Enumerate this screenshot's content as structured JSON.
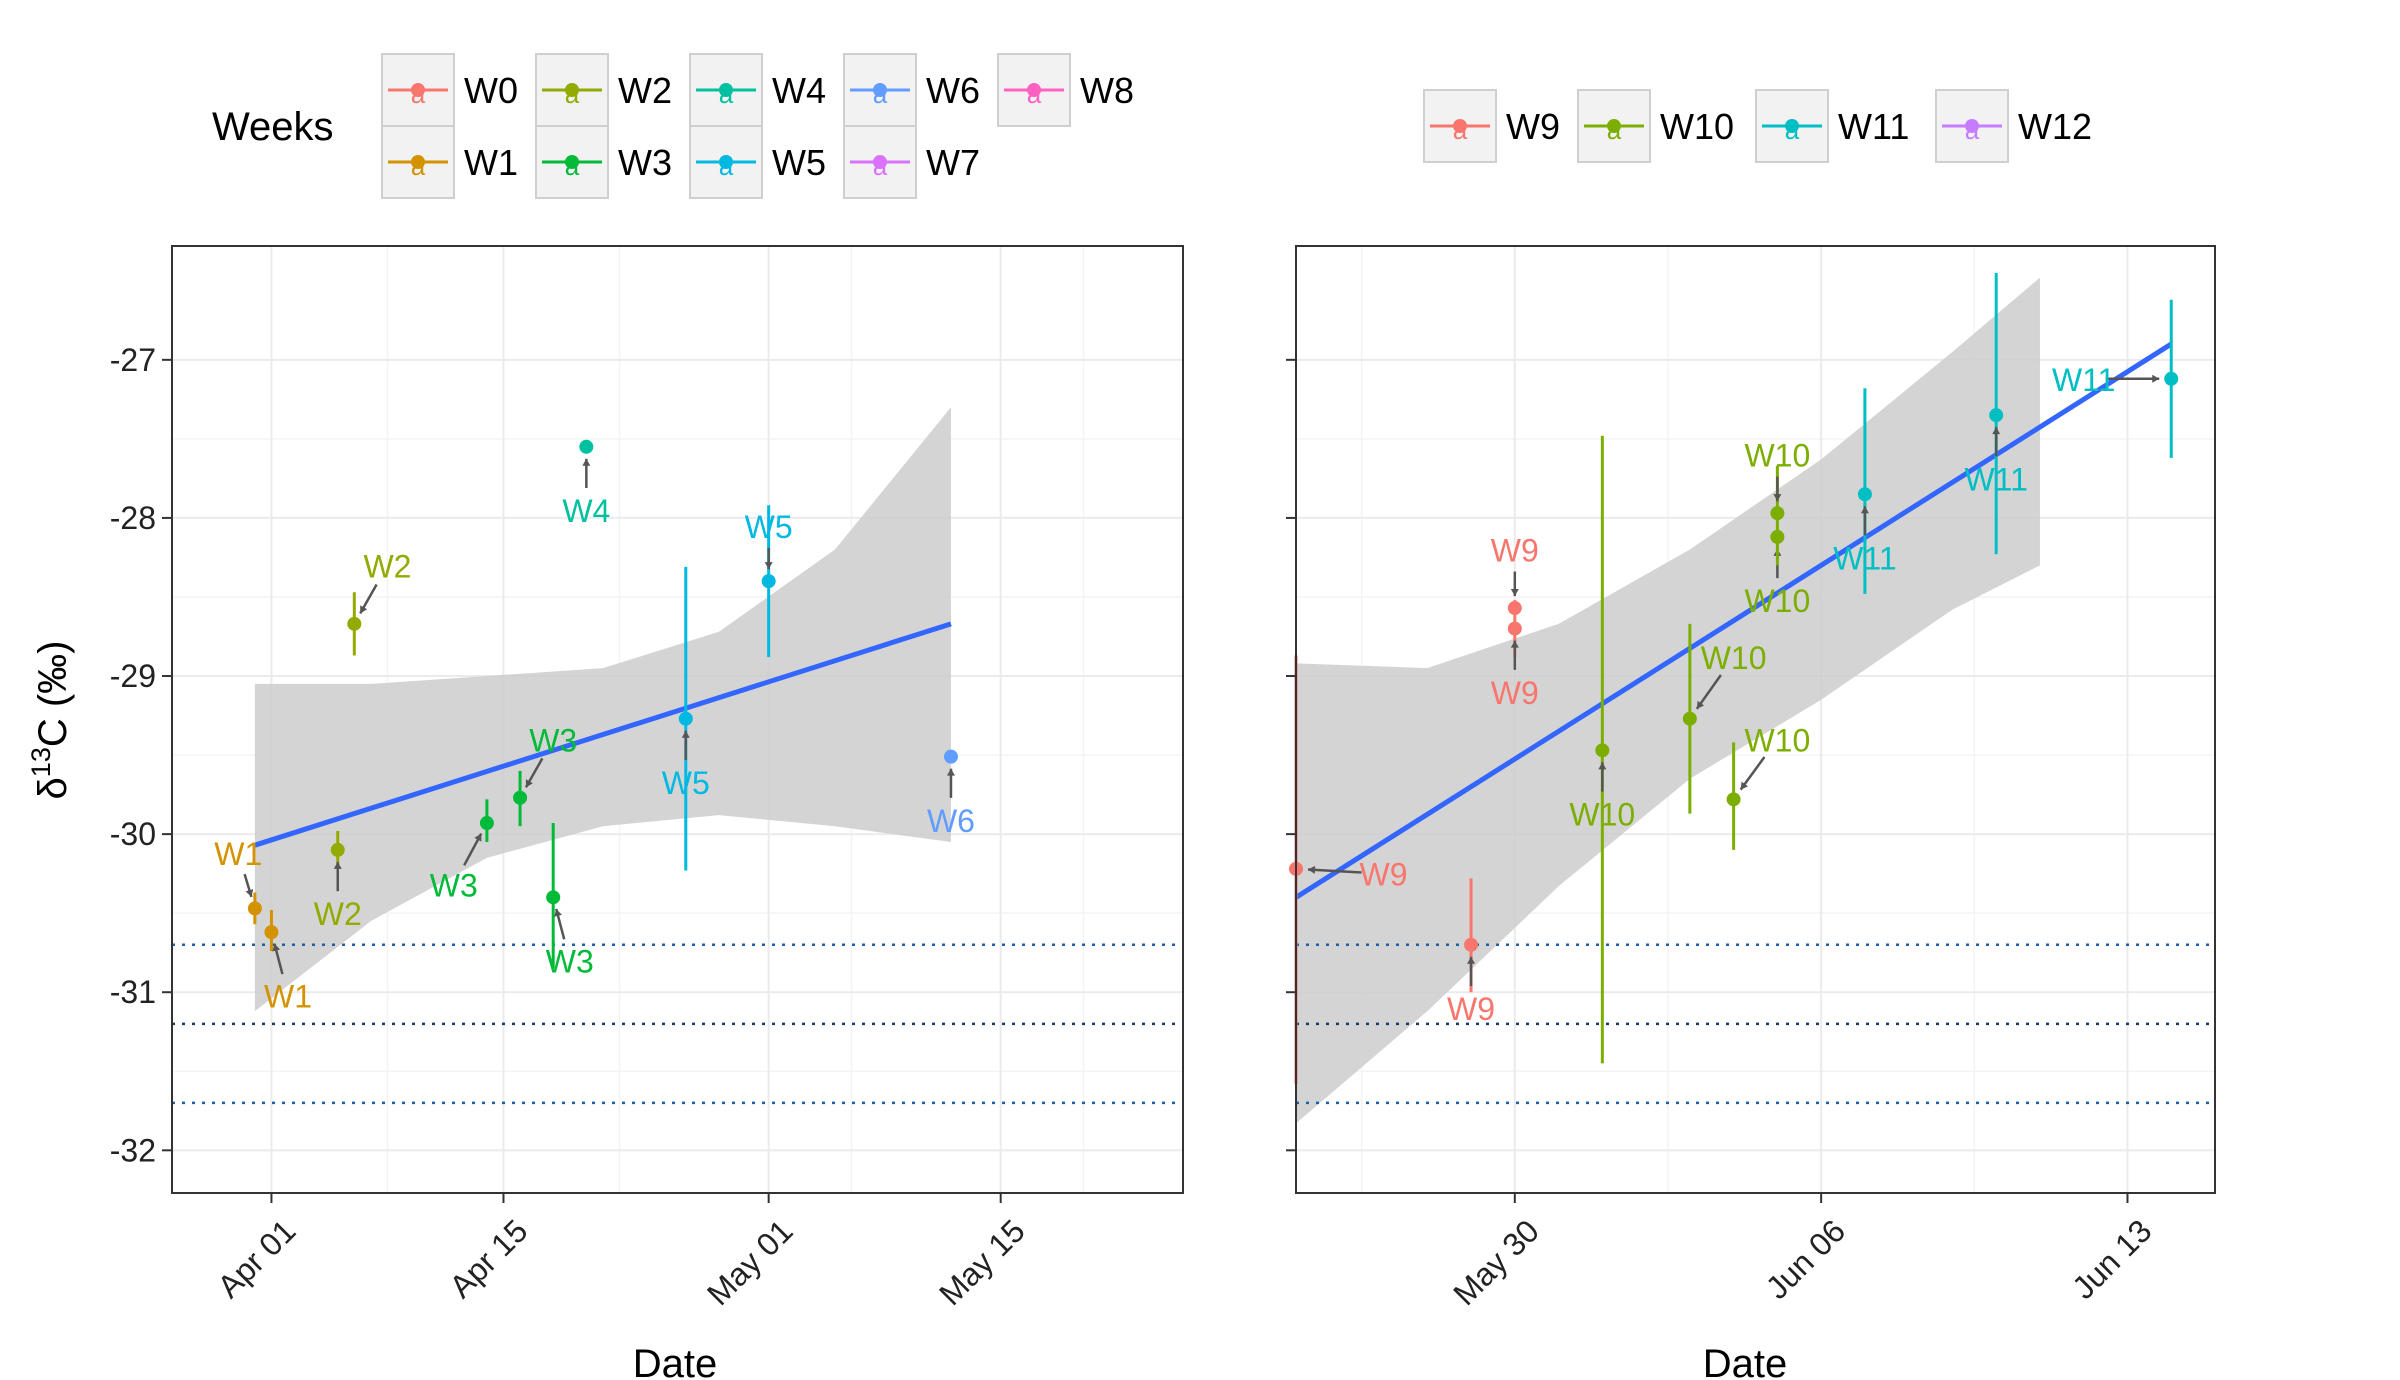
{
  "y_axis_label": "δ¹³C (‰)",
  "y_label_parts": {
    "delta": "δ",
    "sup": "13",
    "rest": "C (‰)"
  },
  "legend_left": {
    "title": "Weeks",
    "keys": [
      "W0",
      "W1",
      "W2",
      "W3",
      "W4",
      "W5",
      "W6",
      "W7",
      "W8"
    ],
    "glyph": "a"
  },
  "legend_right": {
    "keys": [
      "W9",
      "W10",
      "W11",
      "W12"
    ],
    "glyph": "a"
  },
  "colors": {
    "W0": "#F8766D",
    "W1": "#D39200",
    "W2": "#93AA00",
    "W3": "#00BA38",
    "W4": "#00C19F",
    "W5": "#00B9E3",
    "W6": "#619CFF",
    "W7": "#DB72FB",
    "W8": "#FF61C3",
    "W9": "#F8766D",
    "W10": "#7CAE00",
    "W11": "#00BFC4",
    "W12": "#C77CFF",
    "trend": "#3366FF",
    "ribbon": "#CCCCCC",
    "hline": "#1F5FA8",
    "hline_mid": "#143C6E",
    "arrow": "#555555"
  },
  "chart_data": [
    {
      "type": "scatter",
      "panel": "left",
      "xlabel": "Date",
      "ylabel": "δ13C (‰)",
      "xlim": [
        "2018-03-26",
        "2018-05-26"
      ],
      "ylim": [
        -32.27,
        -26.28
      ],
      "x_ticks": [
        {
          "date": "2018-04-01",
          "label": "Apr 01"
        },
        {
          "date": "2018-04-15",
          "label": "Apr 15"
        },
        {
          "date": "2018-05-01",
          "label": "May 01"
        },
        {
          "date": "2018-05-15",
          "label": "May 15"
        }
      ],
      "y_ticks": [
        -32,
        -31,
        -30,
        -29,
        -28,
        -27
      ],
      "y_tick_labels": [
        "-32",
        "-31",
        "-30",
        "-29",
        "-28",
        "-27"
      ],
      "hlines": [
        -30.7,
        -31.2,
        -31.7
      ],
      "trend": {
        "x": [
          "2018-03-31",
          "2018-05-12"
        ],
        "y": [
          -30.07,
          -28.67
        ]
      },
      "ribbon": {
        "x": [
          "2018-03-31",
          "2018-04-07",
          "2018-04-14",
          "2018-04-21",
          "2018-04-28",
          "2018-05-05",
          "2018-05-12"
        ],
        "upper": [
          -29.05,
          -29.05,
          -29.0,
          -28.95,
          -28.72,
          -28.2,
          -27.3
        ],
        "lower": [
          -31.12,
          -30.55,
          -30.15,
          -29.95,
          -29.88,
          -29.95,
          -30.05
        ]
      },
      "points": [
        {
          "week": "W1",
          "date": "2018-03-31",
          "y": -30.47,
          "ymin": -30.57,
          "ymax": -30.37,
          "label": "W1",
          "lx": "2018-03-30",
          "ly": -30.12
        },
        {
          "week": "W1",
          "date": "2018-04-01",
          "y": -30.62,
          "ymin": -30.74,
          "ymax": -30.48,
          "label": "W1",
          "lx": "2018-04-02",
          "ly": -31.02
        },
        {
          "week": "W2",
          "date": "2018-04-05",
          "y": -30.1,
          "ymin": -30.2,
          "ymax": -29.98,
          "label": "W2",
          "lx": "2018-04-05",
          "ly": -30.5
        },
        {
          "week": "W2",
          "date": "2018-04-06",
          "y": -28.67,
          "ymin": -28.87,
          "ymax": -28.47,
          "label": "W2",
          "lx": "2018-04-08",
          "ly": -28.3
        },
        {
          "week": "W3",
          "date": "2018-04-14",
          "y": -29.93,
          "ymin": -30.05,
          "ymax": -29.78,
          "label": "W3",
          "lx": "2018-04-12",
          "ly": -30.32
        },
        {
          "week": "W3",
          "date": "2018-04-16",
          "y": -29.77,
          "ymin": -29.95,
          "ymax": -29.6,
          "label": "W3",
          "lx": "2018-04-18",
          "ly": -29.4
        },
        {
          "week": "W3",
          "date": "2018-04-18",
          "y": -30.4,
          "ymin": -30.85,
          "ymax": -29.93,
          "label": "W3",
          "lx": "2018-04-19",
          "ly": -30.8
        },
        {
          "week": "W4",
          "date": "2018-04-20",
          "y": -27.55,
          "ymin": -27.55,
          "ymax": -27.55,
          "label": "W4",
          "lx": "2018-04-20",
          "ly": -27.95
        },
        {
          "week": "W5",
          "date": "2018-04-26",
          "y": -29.27,
          "ymin": -30.23,
          "ymax": -28.31,
          "label": "W5",
          "lx": "2018-04-26",
          "ly": -29.67
        },
        {
          "week": "W5",
          "date": "2018-05-01",
          "y": -28.4,
          "ymin": -28.88,
          "ymax": -27.92,
          "label": "W5",
          "lx": "2018-05-01",
          "ly": -28.05
        },
        {
          "week": "W6",
          "date": "2018-05-12",
          "y": -29.51,
          "ymin": -29.51,
          "ymax": -29.51,
          "label": "W6",
          "lx": "2018-05-12",
          "ly": -29.91
        }
      ]
    },
    {
      "type": "scatter",
      "panel": "right",
      "xlabel": "Date",
      "ylabel": "",
      "xlim": [
        "2018-05-25",
        "2018-06-15"
      ],
      "ylim": [
        -32.27,
        -26.28
      ],
      "x_ticks": [
        {
          "date": "2018-05-30",
          "label": "May 30"
        },
        {
          "date": "2018-06-06",
          "label": "Jun 06"
        },
        {
          "date": "2018-06-13",
          "label": "Jun 13"
        }
      ],
      "y_ticks": [
        -32,
        -31,
        -30,
        -29,
        -28,
        -27
      ],
      "hlines": [
        -30.7,
        -31.2,
        -31.7
      ],
      "trend": {
        "x": [
          "2018-05-25",
          "2018-06-14"
        ],
        "y": [
          -30.4,
          -26.9
        ]
      },
      "ribbon": {
        "x": [
          "2018-05-25",
          "2018-05-28",
          "2018-05-31",
          "2018-06-03",
          "2018-06-06",
          "2018-06-09",
          "2018-06-11"
        ],
        "upper": [
          -28.92,
          -28.95,
          -28.67,
          -28.2,
          -27.63,
          -26.95,
          -26.48
        ],
        "lower": [
          -31.83,
          -31.12,
          -30.33,
          -29.65,
          -29.15,
          -28.58,
          -28.3
        ]
      },
      "points": [
        {
          "week": "W9",
          "date": "2018-05-25",
          "y": -30.22,
          "ymin": -31.58,
          "ymax": -28.87,
          "label": "W9",
          "lx": "2018-05-27",
          "ly": -30.25
        },
        {
          "week": "W9",
          "date": "2018-05-29",
          "y": -30.7,
          "ymin": -31.0,
          "ymax": -30.28,
          "label": "W9",
          "lx": "2018-05-29",
          "ly": -31.1
        },
        {
          "week": "W9",
          "date": "2018-05-30",
          "y": -28.57,
          "ymin": -28.57,
          "ymax": -28.57,
          "label": "W9",
          "lx": "2018-05-30",
          "ly": -28.2
        },
        {
          "week": "W9",
          "date": "2018-05-30",
          "y": -28.7,
          "ymin": -28.88,
          "ymax": -28.52,
          "label": "W9",
          "lx": "2018-05-30",
          "ly": -29.1
        },
        {
          "week": "W10",
          "date": "2018-06-01",
          "y": -29.47,
          "ymin": -31.45,
          "ymax": -27.48,
          "label": "W10",
          "lx": "2018-06-01",
          "ly": -29.87
        },
        {
          "week": "W10",
          "date": "2018-06-03",
          "y": -29.27,
          "ymin": -29.87,
          "ymax": -28.67,
          "label": "W10",
          "lx": "2018-06-04",
          "ly": -28.88
        },
        {
          "week": "W10",
          "date": "2018-06-04",
          "y": -29.78,
          "ymin": -30.1,
          "ymax": -29.42,
          "label": "W10",
          "lx": "2018-06-05",
          "ly": -29.4
        },
        {
          "week": "W10",
          "date": "2018-06-05",
          "y": -28.12,
          "ymin": -28.12,
          "ymax": -28.12,
          "label": "W10",
          "lx": "2018-06-05",
          "ly": -28.52
        },
        {
          "week": "W10",
          "date": "2018-06-05",
          "y": -27.97,
          "ymin": -28.3,
          "ymax": -27.67,
          "label": "W10",
          "lx": "2018-06-05",
          "ly": -27.6
        },
        {
          "week": "W11",
          "date": "2018-06-07",
          "y": -27.85,
          "ymin": -28.48,
          "ymax": -27.18,
          "label": "W11",
          "lx": "2018-06-07",
          "ly": -28.25
        },
        {
          "week": "W11",
          "date": "2018-06-10",
          "y": -27.35,
          "ymin": -28.23,
          "ymax": -26.45,
          "label": "W11",
          "lx": "2018-06-10",
          "ly": -27.75
        },
        {
          "week": "W11",
          "date": "2018-06-14",
          "y": -27.12,
          "ymin": -27.62,
          "ymax": -26.62,
          "label": "W11",
          "lx": "2018-06-12",
          "ly": -27.12
        }
      ]
    }
  ]
}
